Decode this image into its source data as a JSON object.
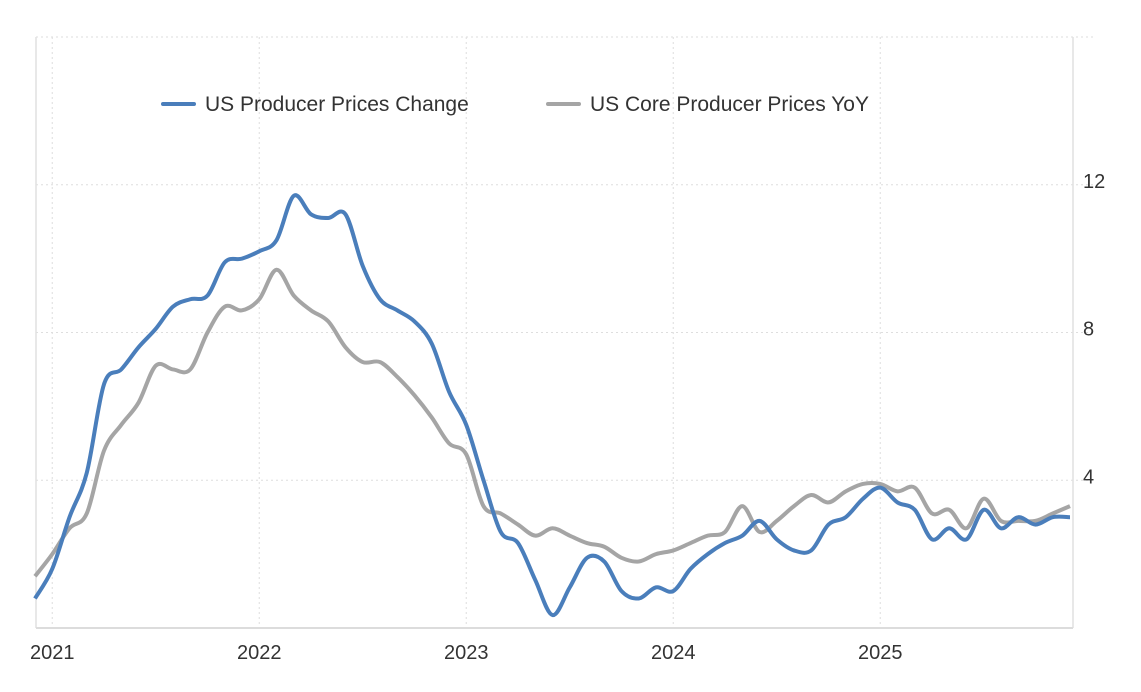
{
  "chart_data": {
    "type": "line",
    "title": "",
    "xlabel": "",
    "ylabel": "",
    "x_start": "2020-12",
    "x_frequency": "monthly",
    "x_tick_labels": [
      "2021",
      "2022",
      "2023",
      "2024",
      "2025"
    ],
    "y_tick_labels": [
      "4",
      "8",
      "12"
    ],
    "y_ticks": [
      4,
      8,
      12
    ],
    "ylim": [
      0,
      16
    ],
    "xlim": [
      "2020-12",
      "2025-12"
    ],
    "grid": true,
    "legend_position": "top",
    "y_axis_side": "right",
    "series": [
      {
        "name": "US Producer Prices Change",
        "color": "#4a7ebb",
        "values": [
          0.8,
          1.6,
          3.0,
          4.2,
          6.6,
          7.0,
          7.6,
          8.1,
          8.7,
          8.9,
          9.0,
          9.9,
          10.0,
          10.2,
          10.5,
          11.7,
          11.2,
          11.1,
          11.2,
          9.8,
          8.9,
          8.6,
          8.3,
          7.7,
          6.4,
          5.5,
          4.0,
          2.6,
          2.3,
          1.3,
          0.35,
          1.1,
          1.9,
          1.8,
          1.0,
          0.8,
          1.1,
          1.0,
          1.6,
          2.0,
          2.3,
          2.5,
          2.9,
          2.4,
          2.1,
          2.1,
          2.8,
          3.0,
          3.5,
          3.8,
          3.4,
          3.2,
          2.4,
          2.7,
          2.4,
          3.2,
          2.7,
          3.0,
          2.8,
          3.0,
          3.0
        ]
      },
      {
        "name": "US Core Producer Prices YoY",
        "color": "#a5a5a5",
        "values": [
          1.4,
          2.0,
          2.7,
          3.1,
          4.8,
          5.5,
          6.1,
          7.1,
          7.0,
          7.0,
          8.0,
          8.7,
          8.6,
          8.9,
          9.7,
          9.0,
          8.6,
          8.3,
          7.6,
          7.2,
          7.2,
          6.8,
          6.3,
          5.7,
          5.0,
          4.7,
          3.3,
          3.1,
          2.8,
          2.5,
          2.7,
          2.5,
          2.3,
          2.2,
          1.9,
          1.8,
          2.0,
          2.1,
          2.3,
          2.5,
          2.6,
          3.3,
          2.6,
          2.9,
          3.3,
          3.6,
          3.4,
          3.7,
          3.9,
          3.9,
          3.7,
          3.8,
          3.1,
          3.2,
          2.7,
          3.5,
          2.9,
          2.9,
          2.9,
          3.1,
          3.3
        ]
      }
    ]
  }
}
